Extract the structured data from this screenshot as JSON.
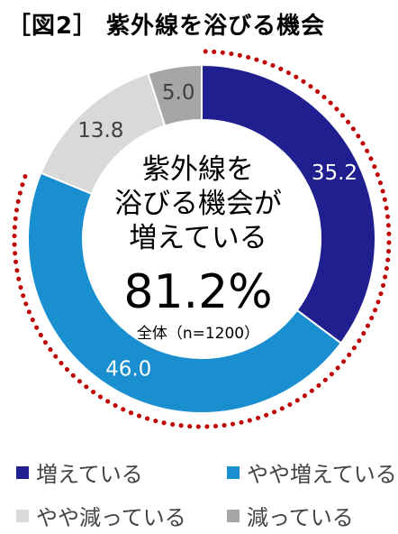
{
  "title": "［図2］ 紫外線を浴びる機会",
  "center": {
    "line1": "紫外線を",
    "line2": "浴びる機会が",
    "line3": "増えている",
    "big": "81.2%",
    "note": "全体（n=1200）"
  },
  "chart_data": {
    "type": "pie",
    "donut": true,
    "title": "［図2］ 紫外線を浴びる機会",
    "categories": [
      "増えている",
      "やや増えている",
      "やや減っている",
      "減っている"
    ],
    "values": [
      35.2,
      46.0,
      13.8,
      5.0
    ],
    "value_labels": [
      "35.2",
      "46.0",
      "13.8",
      "5.0"
    ],
    "colors": [
      "#1f1f8f",
      "#1a8fd0",
      "#d9d9d9",
      "#a6a6a6"
    ],
    "label_colors": [
      "#ffffff",
      "#ffffff",
      "#404040",
      "#404040"
    ],
    "highlight_arc_color": "#c00000",
    "legend_position": "bottom",
    "center_total": "81.2%",
    "sample": "全体（n=1200）"
  },
  "legend": [
    {
      "label": "増えている",
      "color": "#1f1f8f"
    },
    {
      "label": "やや増えている",
      "color": "#1a8fd0"
    },
    {
      "label": "やや減っている",
      "color": "#d9d9d9"
    },
    {
      "label": "減っている",
      "color": "#a6a6a6"
    }
  ]
}
